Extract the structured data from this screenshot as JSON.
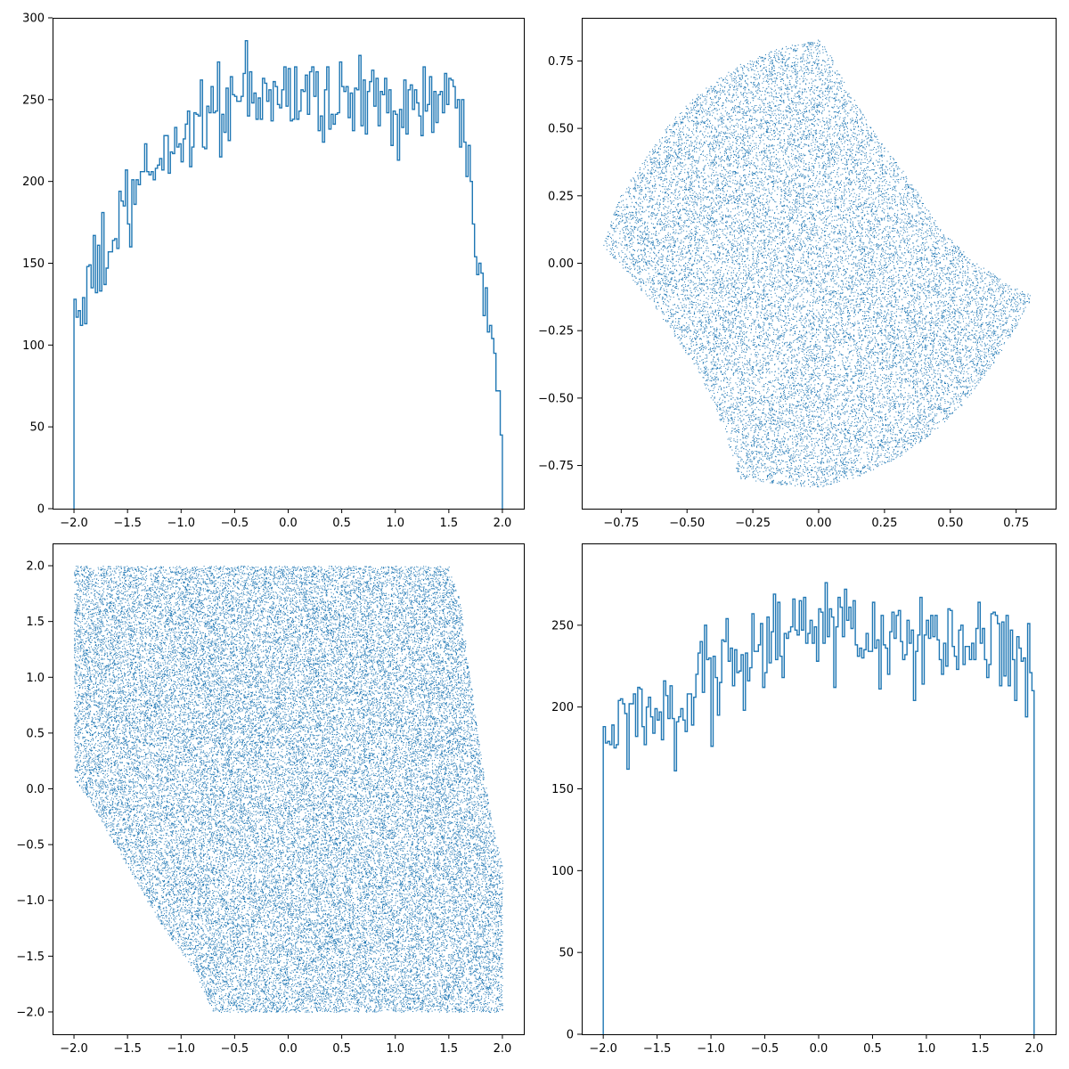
{
  "colors": {
    "series": "#1f77b4",
    "axis": "#000000",
    "background": "#ffffff"
  },
  "chart_data": [
    {
      "id": "top-left",
      "type": "histogram",
      "style": "step",
      "bins": 200,
      "xlim": [
        -2.2,
        2.2
      ],
      "ylim": [
        0,
        300
      ],
      "xticks": [
        -2.0,
        -1.5,
        -1.0,
        -0.5,
        0.0,
        0.5,
        1.0,
        1.5,
        2.0
      ],
      "xtick_labels": [
        "−2.0",
        "−1.5",
        "−1.0",
        "−0.5",
        "0.0",
        "0.5",
        "1.0",
        "1.5",
        "2.0"
      ],
      "yticks": [
        0,
        50,
        100,
        150,
        200,
        250,
        300
      ],
      "ytick_labels": [
        "0",
        "50",
        "100",
        "150",
        "200",
        "250",
        "300"
      ],
      "envelope": {
        "x": [
          -2.0,
          -1.98,
          -1.9,
          -1.8,
          -1.7,
          -1.6,
          -1.5,
          -1.4,
          -1.3,
          -1.2,
          -1.1,
          -1.0,
          -0.9,
          -0.8,
          -0.7,
          -0.6,
          -0.5,
          -0.4,
          -0.3,
          -0.2,
          -0.1,
          0.0,
          0.1,
          0.2,
          0.3,
          0.4,
          0.5,
          0.6,
          0.7,
          0.8,
          0.9,
          1.0,
          1.1,
          1.2,
          1.3,
          1.4,
          1.5,
          1.6,
          1.7,
          1.75,
          1.8,
          1.85,
          1.9,
          1.95,
          1.98,
          2.0
        ],
        "y": [
          122,
          126,
          122,
          144,
          155,
          168,
          180,
          192,
          204,
          214,
          220,
          226,
          234,
          240,
          244,
          246,
          248,
          250,
          250,
          250,
          252,
          252,
          254,
          254,
          252,
          250,
          250,
          250,
          248,
          248,
          248,
          248,
          248,
          248,
          250,
          250,
          248,
          242,
          222,
          180,
          150,
          130,
          115,
          85,
          55,
          47
        ]
      },
      "noise": 14
    },
    {
      "id": "top-right",
      "type": "scatter",
      "marker": "pixel",
      "xlim": [
        -0.9,
        0.9
      ],
      "ylim": [
        -0.91,
        0.91
      ],
      "xticks": [
        -0.75,
        -0.5,
        -0.25,
        0.0,
        0.25,
        0.5,
        0.75
      ],
      "xtick_labels": [
        "−0.75",
        "−0.50",
        "−0.25",
        "0.00",
        "0.25",
        "0.50",
        "0.75"
      ],
      "yticks": [
        -0.75,
        -0.5,
        -0.25,
        0.0,
        0.25,
        0.5,
        0.75
      ],
      "ytick_labels": [
        "−0.75",
        "−0.50",
        "−0.25",
        "0.00",
        "0.25",
        "0.50",
        "0.75"
      ],
      "n_points": 20000,
      "region": {
        "shape": "lune",
        "outline": [
          [
            -0.82,
            0.06
          ],
          [
            -0.8,
            0.14
          ],
          [
            -0.75,
            0.26
          ],
          [
            -0.67,
            0.38
          ],
          [
            -0.56,
            0.53
          ],
          [
            -0.45,
            0.64
          ],
          [
            -0.3,
            0.74
          ],
          [
            -0.15,
            0.8
          ],
          [
            0.0,
            0.83
          ],
          [
            0.02,
            0.83
          ],
          [
            0.08,
            0.7
          ],
          [
            0.15,
            0.58
          ],
          [
            0.22,
            0.47
          ],
          [
            0.3,
            0.37
          ],
          [
            0.38,
            0.26
          ],
          [
            0.45,
            0.15
          ],
          [
            0.52,
            0.07
          ],
          [
            0.6,
            0.0
          ],
          [
            0.68,
            -0.05
          ],
          [
            0.75,
            -0.09
          ],
          [
            0.81,
            -0.12
          ],
          [
            0.79,
            -0.16
          ],
          [
            0.73,
            -0.27
          ],
          [
            0.65,
            -0.39
          ],
          [
            0.55,
            -0.52
          ],
          [
            0.43,
            -0.63
          ],
          [
            0.3,
            -0.72
          ],
          [
            0.15,
            -0.79
          ],
          [
            0.0,
            -0.83
          ],
          [
            -0.15,
            -0.82
          ],
          [
            -0.3,
            -0.8
          ],
          [
            -0.31,
            -0.77
          ],
          [
            -0.35,
            -0.65
          ],
          [
            -0.4,
            -0.52
          ],
          [
            -0.46,
            -0.4
          ],
          [
            -0.54,
            -0.28
          ],
          [
            -0.62,
            -0.17
          ],
          [
            -0.7,
            -0.07
          ],
          [
            -0.76,
            0.0
          ],
          [
            -0.82,
            0.06
          ]
        ]
      }
    },
    {
      "id": "bottom-left",
      "type": "scatter",
      "marker": "pixel",
      "xlim": [
        -2.2,
        2.2
      ],
      "ylim": [
        -2.2,
        2.2
      ],
      "xticks": [
        -2.0,
        -1.5,
        -1.0,
        -0.5,
        0.0,
        0.5,
        1.0,
        1.5,
        2.0
      ],
      "xtick_labels": [
        "−2.0",
        "−1.5",
        "−1.0",
        "−0.5",
        "0.0",
        "0.5",
        "1.0",
        "1.5",
        "2.0"
      ],
      "yticks": [
        -2.0,
        -1.5,
        -1.0,
        -0.5,
        0.0,
        0.5,
        1.0,
        1.5,
        2.0
      ],
      "ytick_labels": [
        "−2.0",
        "−1.5",
        "−1.0",
        "−0.5",
        "0.0",
        "0.5",
        "1.0",
        "1.5",
        "2.0"
      ],
      "n_points": 45000,
      "region": {
        "shape": "polygon",
        "outline": [
          [
            -2.0,
            2.0
          ],
          [
            1.5,
            2.0
          ],
          [
            1.6,
            1.7
          ],
          [
            1.7,
            1.0
          ],
          [
            1.8,
            0.3
          ],
          [
            1.9,
            -0.3
          ],
          [
            2.0,
            -0.7
          ],
          [
            2.0,
            -2.0
          ],
          [
            -0.7,
            -2.0
          ],
          [
            -0.9,
            -1.6
          ],
          [
            -1.2,
            -1.2
          ],
          [
            -1.5,
            -0.7
          ],
          [
            -1.8,
            -0.2
          ],
          [
            -2.0,
            0.1
          ],
          [
            -2.0,
            2.0
          ]
        ]
      }
    },
    {
      "id": "bottom-right",
      "type": "histogram",
      "style": "step",
      "bins": 200,
      "xlim": [
        -2.2,
        2.2
      ],
      "ylim": [
        0,
        300
      ],
      "xticks": [
        -2.0,
        -1.5,
        -1.0,
        -0.5,
        0.0,
        0.5,
        1.0,
        1.5,
        2.0
      ],
      "xtick_labels": [
        "−2.0",
        "−1.5",
        "−1.0",
        "−0.5",
        "0.0",
        "0.5",
        "1.0",
        "1.5",
        "2.0"
      ],
      "yticks": [
        0,
        50,
        100,
        150,
        200,
        250
      ],
      "ytick_labels": [
        "0",
        "50",
        "100",
        "150",
        "200",
        "250"
      ],
      "envelope": {
        "x": [
          -2.0,
          -1.9,
          -1.8,
          -1.7,
          -1.6,
          -1.5,
          -1.4,
          -1.3,
          -1.2,
          -1.1,
          -1.0,
          -0.9,
          -0.8,
          -0.7,
          -0.6,
          -0.5,
          -0.4,
          -0.3,
          -0.2,
          -0.1,
          0.0,
          0.1,
          0.2,
          0.3,
          0.4,
          0.5,
          0.6,
          0.7,
          0.8,
          0.9,
          1.0,
          1.1,
          1.2,
          1.3,
          1.4,
          1.5,
          1.6,
          1.7,
          1.8,
          1.9,
          2.0
        ],
        "y": [
          170,
          178,
          184,
          188,
          194,
          198,
          202,
          206,
          210,
          214,
          218,
          222,
          228,
          232,
          236,
          240,
          242,
          244,
          246,
          248,
          250,
          250,
          250,
          248,
          246,
          244,
          244,
          242,
          242,
          240,
          240,
          238,
          238,
          238,
          236,
          236,
          234,
          232,
          230,
          222,
          220
        ]
      },
      "noise": 16
    }
  ]
}
